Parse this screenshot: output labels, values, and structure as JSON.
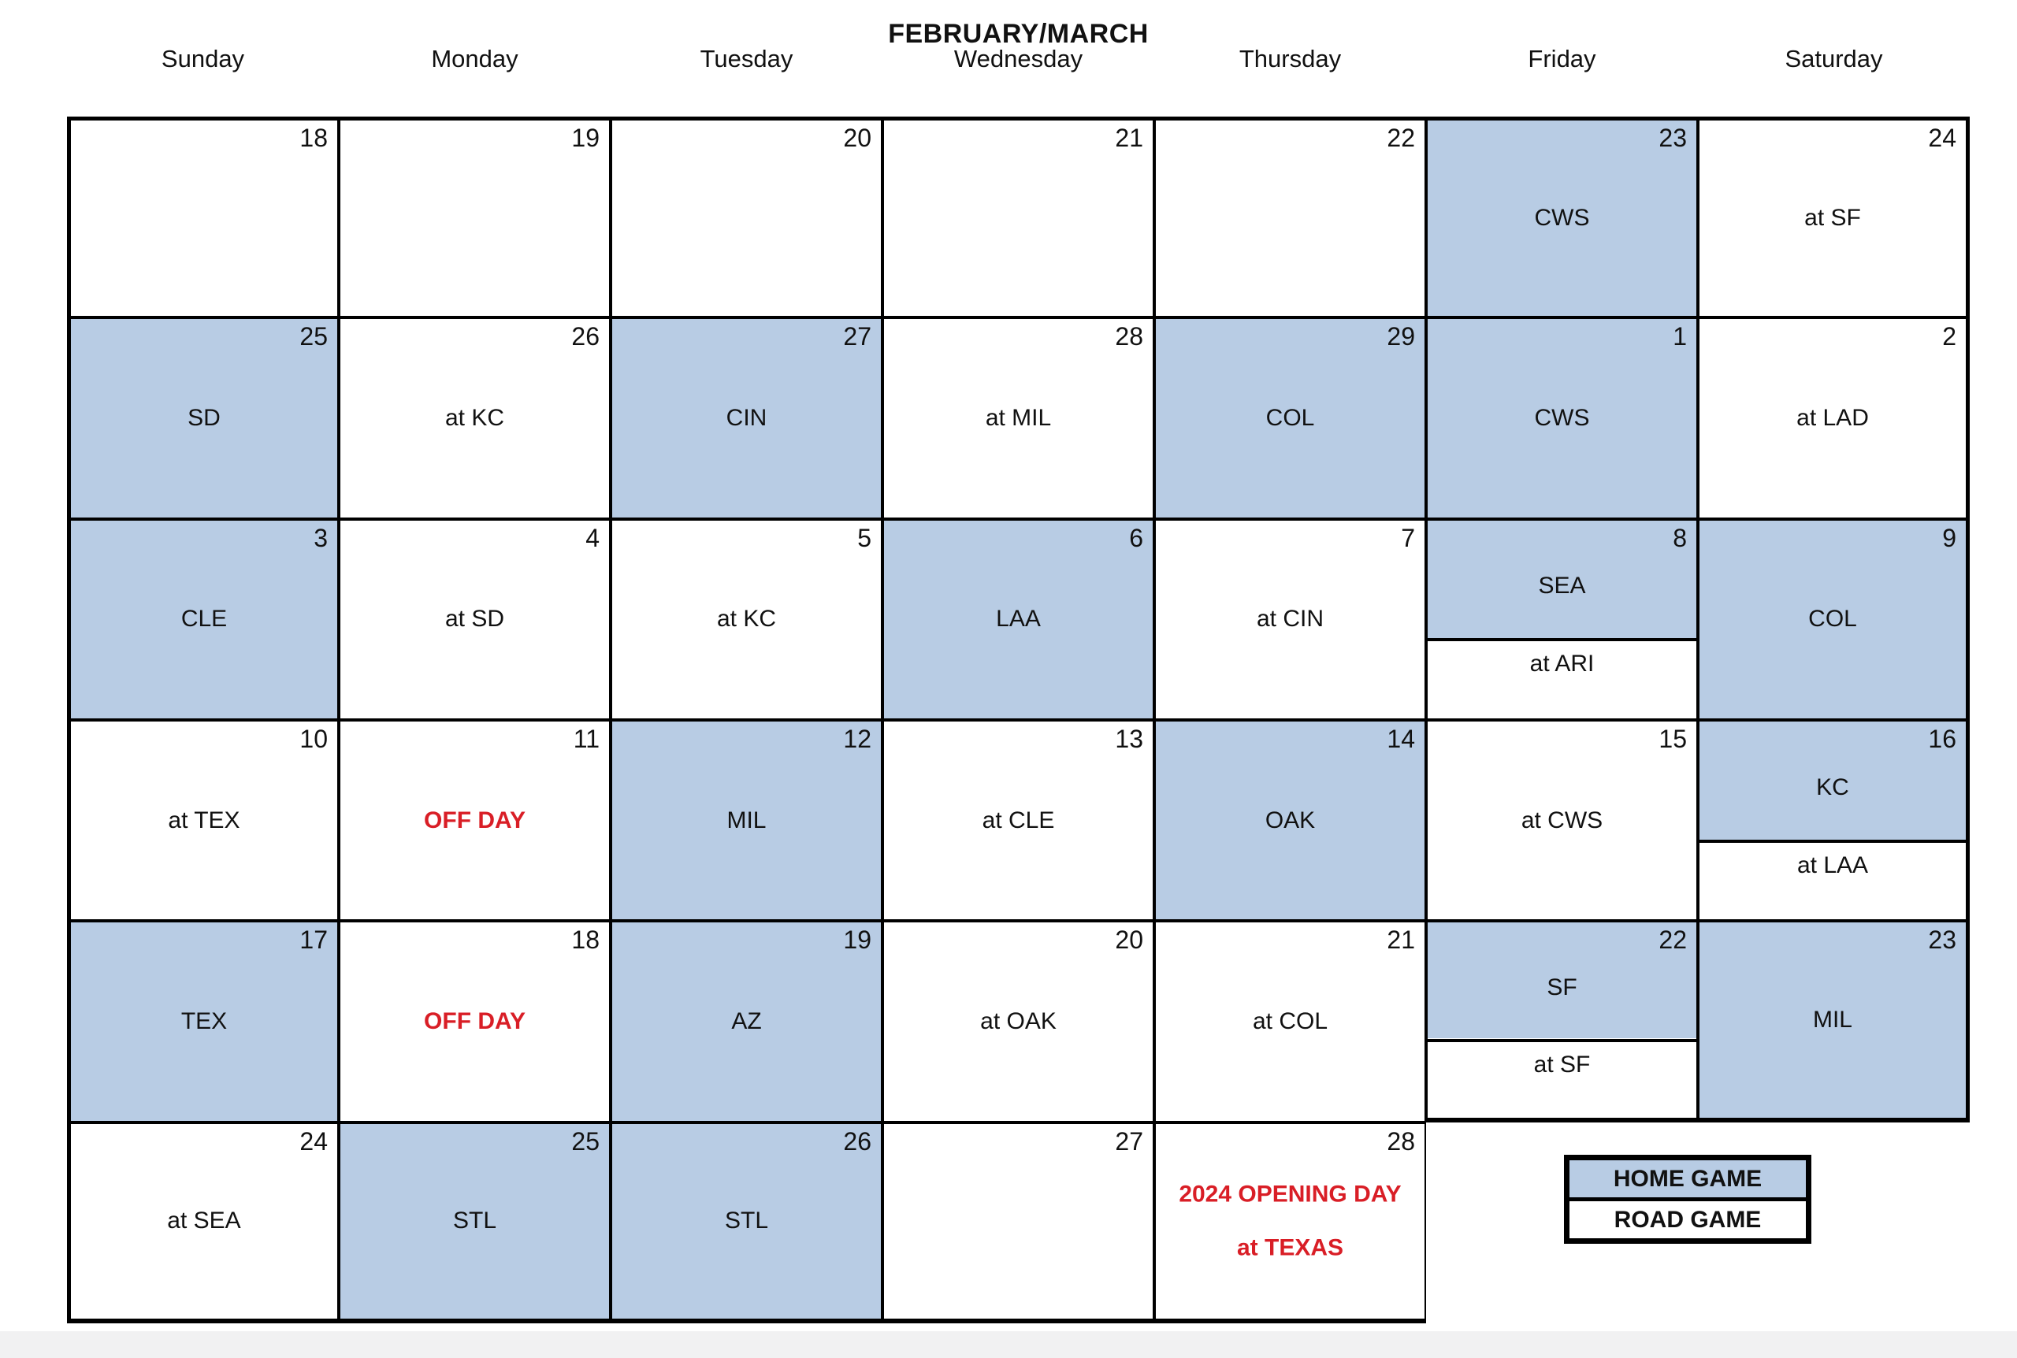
{
  "page": {
    "title": "FEBRUARY/MARCH"
  },
  "colors": {
    "home_fill": "#B8CCE4",
    "road_fill": "#FFFFFF",
    "grid_line": "#000000",
    "accent_red": "#D91E26",
    "footer_strip": "#F1F1F2"
  },
  "weekday_headers": [
    "Sunday",
    "Monday",
    "Tuesday",
    "Wednesday",
    "Thursday",
    "Friday",
    "Saturday"
  ],
  "legend": {
    "home_label": "HOME GAME",
    "road_label": "ROAD GAME"
  },
  "calendar": {
    "cells": [
      {
        "date": "18",
        "kind": "blank"
      },
      {
        "date": "19",
        "kind": "blank"
      },
      {
        "date": "20",
        "kind": "blank"
      },
      {
        "date": "21",
        "kind": "blank"
      },
      {
        "date": "22",
        "kind": "blank"
      },
      {
        "date": "23",
        "kind": "home",
        "label": "CWS"
      },
      {
        "date": "24",
        "kind": "road",
        "label": "at SF"
      },
      {
        "date": "25",
        "kind": "home",
        "label": "SD"
      },
      {
        "date": "26",
        "kind": "road",
        "label": "at KC"
      },
      {
        "date": "27",
        "kind": "home",
        "label": "CIN"
      },
      {
        "date": "28",
        "kind": "road",
        "label": "at MIL"
      },
      {
        "date": "29",
        "kind": "home",
        "label": "COL"
      },
      {
        "date": "1",
        "kind": "home",
        "label": "CWS"
      },
      {
        "date": "2",
        "kind": "road",
        "label": "at LAD"
      },
      {
        "date": "3",
        "kind": "home",
        "label": "CLE"
      },
      {
        "date": "4",
        "kind": "road",
        "label": "at SD"
      },
      {
        "date": "5",
        "kind": "road",
        "label": "at KC"
      },
      {
        "date": "6",
        "kind": "home",
        "label": "LAA"
      },
      {
        "date": "7",
        "kind": "road",
        "label": "at CIN"
      },
      {
        "date": "8",
        "kind": "split",
        "top": "SEA",
        "bottom": "at ARI"
      },
      {
        "date": "9",
        "kind": "home",
        "label": "COL"
      },
      {
        "date": "10",
        "kind": "road",
        "label": "at TEX"
      },
      {
        "date": "11",
        "kind": "offday",
        "label": "OFF DAY"
      },
      {
        "date": "12",
        "kind": "home",
        "label": "MIL"
      },
      {
        "date": "13",
        "kind": "road",
        "label": "at CLE"
      },
      {
        "date": "14",
        "kind": "home",
        "label": "OAK"
      },
      {
        "date": "15",
        "kind": "road",
        "label": "at CWS"
      },
      {
        "date": "16",
        "kind": "split",
        "top": "KC",
        "bottom": "at LAA"
      },
      {
        "date": "17",
        "kind": "home",
        "label": "TEX"
      },
      {
        "date": "18",
        "kind": "offday",
        "label": "OFF DAY"
      },
      {
        "date": "19",
        "kind": "home",
        "label": "AZ"
      },
      {
        "date": "20",
        "kind": "road",
        "label": "at OAK"
      },
      {
        "date": "21",
        "kind": "road",
        "label": "at COL"
      },
      {
        "date": "22",
        "kind": "split",
        "top": "SF",
        "bottom": "at SF"
      },
      {
        "date": "23",
        "kind": "home",
        "label": "MIL"
      },
      {
        "date": "24",
        "kind": "road",
        "label": "at SEA"
      },
      {
        "date": "25",
        "kind": "home",
        "label": "STL"
      },
      {
        "date": "26",
        "kind": "home",
        "label": "STL"
      },
      {
        "date": "27",
        "kind": "blank"
      },
      {
        "date": "28",
        "kind": "note",
        "lines": [
          "2024 OPENING DAY",
          "at TEXAS"
        ]
      },
      {
        "kind": "ghost"
      },
      {
        "kind": "ghost"
      }
    ]
  }
}
